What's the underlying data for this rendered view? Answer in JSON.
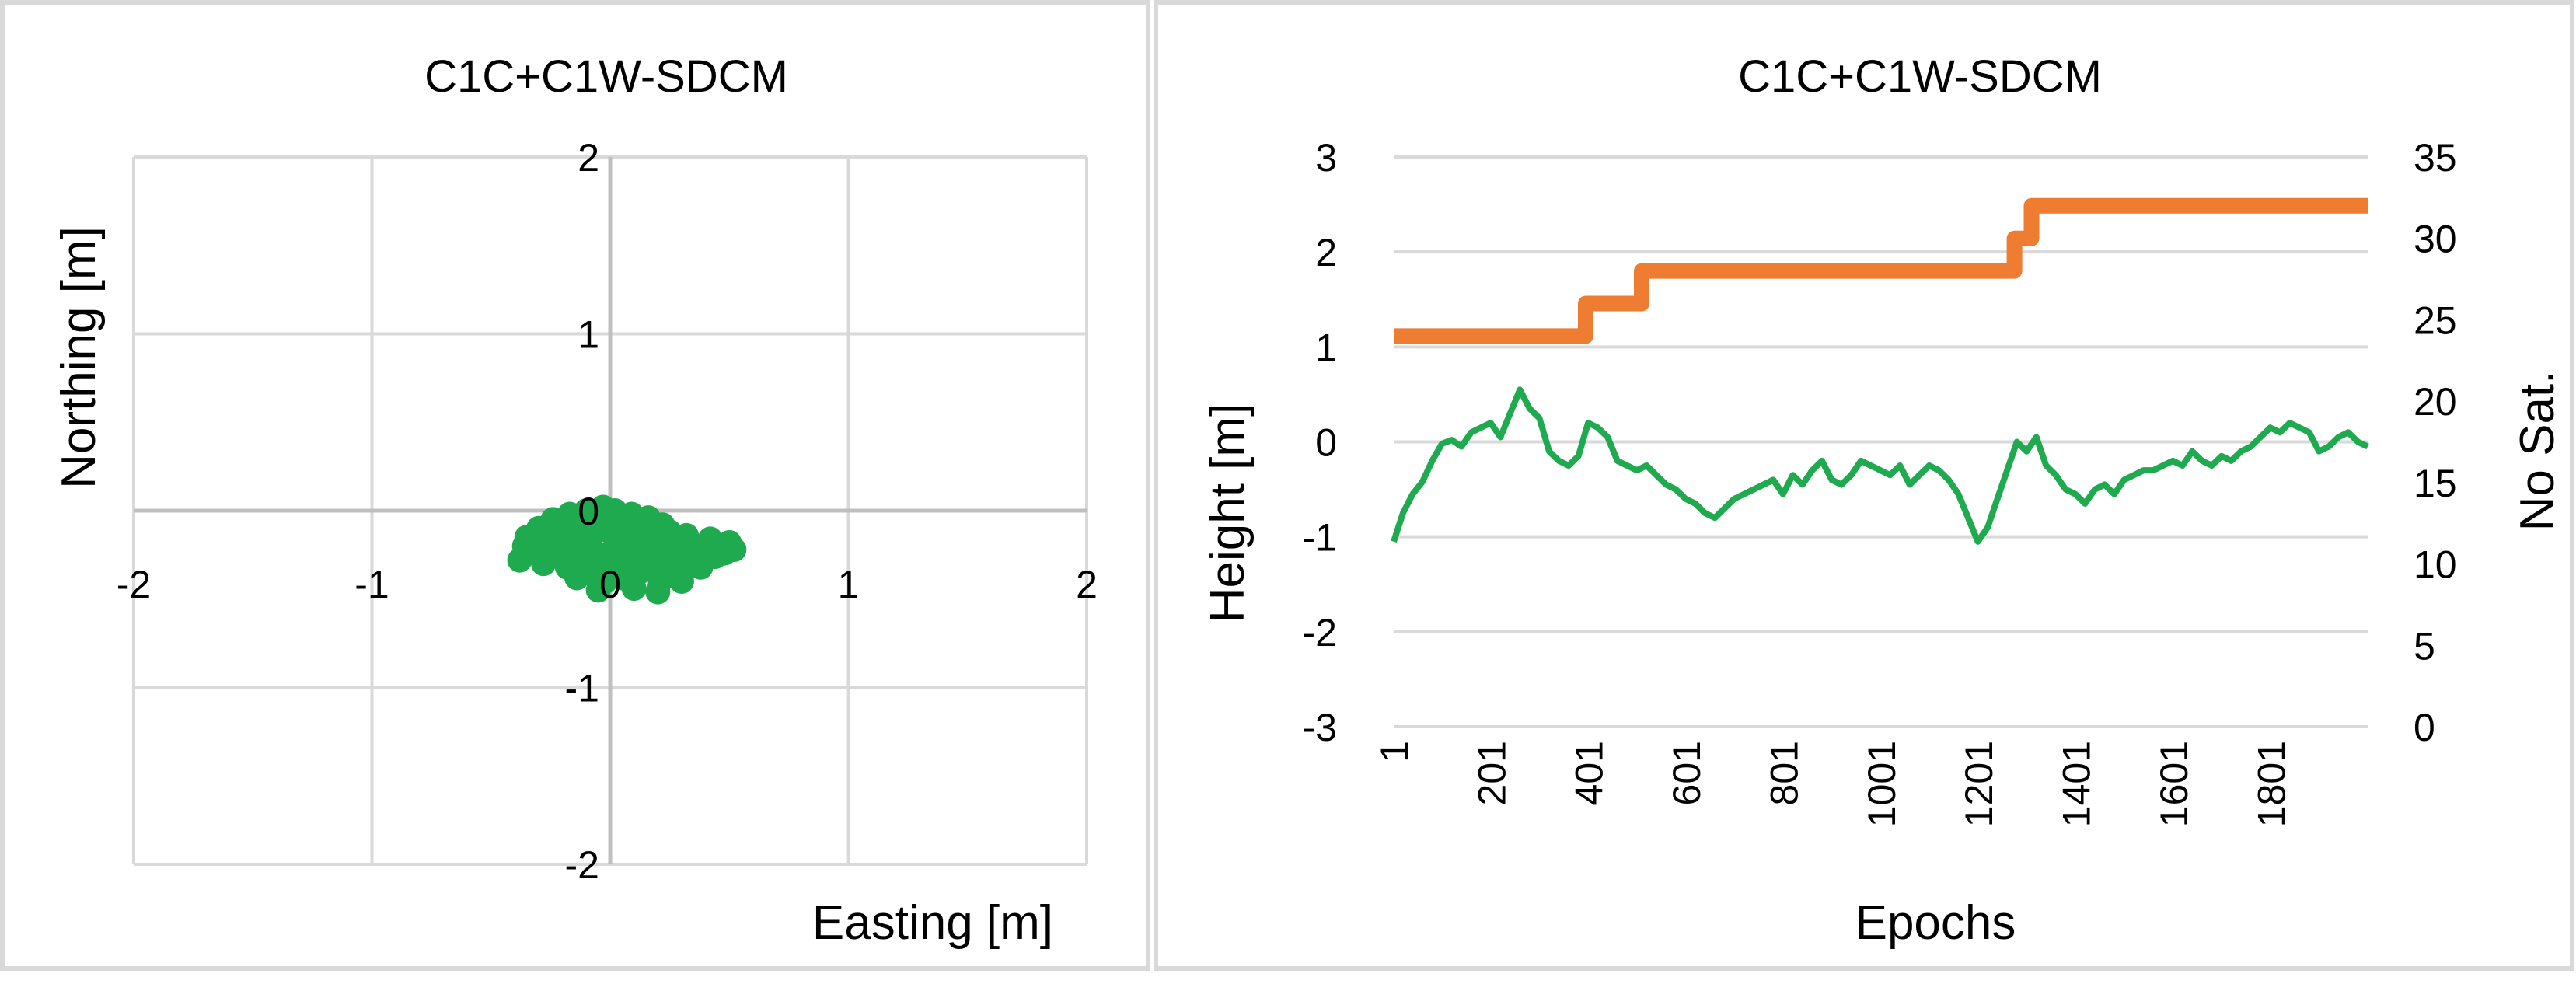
{
  "chart_data": [
    {
      "type": "scatter",
      "title": "C1C+C1W-SDCM",
      "xlabel": "Easting [m]",
      "ylabel": "Northing [m]",
      "xlim": [
        -2,
        2
      ],
      "ylim": [
        -2,
        2
      ],
      "x_ticks": [
        "-2",
        "-1",
        "0",
        "1",
        "2"
      ],
      "y_ticks": [
        "2",
        "1",
        "0",
        "-1",
        "-2"
      ],
      "grid": true,
      "color": "#1faa4f",
      "points": [
        [
          -0.35,
          -0.15
        ],
        [
          -0.32,
          -0.22
        ],
        [
          -0.3,
          -0.1
        ],
        [
          -0.28,
          -0.3
        ],
        [
          -0.26,
          -0.18
        ],
        [
          -0.24,
          -0.05
        ],
        [
          -0.22,
          -0.25
        ],
        [
          -0.2,
          -0.12
        ],
        [
          -0.18,
          -0.32
        ],
        [
          -0.17,
          -0.02
        ],
        [
          -0.15,
          -0.2
        ],
        [
          -0.14,
          -0.38
        ],
        [
          -0.12,
          -0.08
        ],
        [
          -0.11,
          -0.28
        ],
        [
          -0.1,
          0.0
        ],
        [
          -0.08,
          -0.15
        ],
        [
          -0.07,
          -0.35
        ],
        [
          -0.05,
          -0.05
        ],
        [
          -0.04,
          -0.25
        ],
        [
          -0.03,
          0.02
        ],
        [
          -0.02,
          -0.4
        ],
        [
          0.0,
          -0.12
        ],
        [
          0.01,
          -0.3
        ],
        [
          0.02,
          0.0
        ],
        [
          0.03,
          -0.2
        ],
        [
          0.05,
          -0.38
        ],
        [
          0.06,
          -0.08
        ],
        [
          0.08,
          -0.28
        ],
        [
          0.09,
          -0.02
        ],
        [
          0.1,
          -0.18
        ],
        [
          0.12,
          -0.35
        ],
        [
          0.13,
          -0.1
        ],
        [
          0.15,
          -0.25
        ],
        [
          0.16,
          -0.04
        ],
        [
          0.18,
          -0.32
        ],
        [
          0.19,
          -0.15
        ],
        [
          0.21,
          -0.4
        ],
        [
          0.22,
          -0.08
        ],
        [
          0.24,
          -0.22
        ],
        [
          0.25,
          -0.12
        ],
        [
          0.27,
          -0.3
        ],
        [
          0.28,
          -0.18
        ],
        [
          0.3,
          -0.25
        ],
        [
          0.32,
          -0.14
        ],
        [
          0.34,
          -0.28
        ],
        [
          0.36,
          -0.2
        ],
        [
          0.38,
          -0.32
        ],
        [
          0.4,
          -0.22
        ],
        [
          0.42,
          -0.16
        ],
        [
          0.44,
          -0.26
        ],
        [
          0.46,
          -0.2
        ],
        [
          0.48,
          -0.24
        ],
        [
          0.5,
          -0.18
        ],
        [
          0.52,
          -0.22
        ],
        [
          -0.38,
          -0.28
        ],
        [
          -0.36,
          -0.2
        ],
        [
          -0.05,
          -0.45
        ],
        [
          0.1,
          -0.44
        ],
        [
          0.2,
          -0.46
        ],
        [
          0.3,
          -0.4
        ]
      ]
    },
    {
      "type": "line",
      "title": "C1C+C1W-SDCM",
      "xlabel": "Epochs",
      "ylabel": "Height [m]",
      "y2label": "No Sat.",
      "xlim": [
        1,
        2000
      ],
      "ylim": [
        -3,
        3
      ],
      "y2lim": [
        0,
        35
      ],
      "x_ticks": [
        "1",
        "201",
        "401",
        "601",
        "801",
        "1001",
        "1201",
        "1401",
        "1601",
        "1801"
      ],
      "y_ticks": [
        "3",
        "2",
        "1",
        "0",
        "-1",
        "-2",
        "-3"
      ],
      "y2_ticks": [
        "35",
        "30",
        "25",
        "20",
        "15",
        "10",
        "5",
        "0"
      ],
      "grid": true,
      "series": [
        {
          "axis": "left",
          "color": "#1faa4f",
          "x": [
            1,
            20,
            40,
            60,
            80,
            100,
            120,
            140,
            160,
            180,
            200,
            220,
            240,
            260,
            280,
            300,
            320,
            340,
            360,
            380,
            400,
            420,
            440,
            460,
            480,
            500,
            520,
            540,
            560,
            580,
            600,
            620,
            640,
            660,
            680,
            700,
            720,
            740,
            760,
            780,
            800,
            820,
            840,
            860,
            880,
            900,
            920,
            940,
            960,
            980,
            1000,
            1020,
            1040,
            1060,
            1080,
            1100,
            1120,
            1140,
            1160,
            1180,
            1200,
            1220,
            1240,
            1260,
            1280,
            1300,
            1320,
            1340,
            1360,
            1380,
            1400,
            1420,
            1440,
            1460,
            1480,
            1500,
            1520,
            1540,
            1560,
            1580,
            1600,
            1620,
            1640,
            1660,
            1680,
            1700,
            1720,
            1740,
            1760,
            1780,
            1800,
            1820,
            1840,
            1860,
            1880,
            1900,
            1920,
            1940,
            1960,
            1980,
            2000
          ],
          "values": [
            -1.05,
            -0.75,
            -0.55,
            -0.42,
            -0.2,
            -0.02,
            0.02,
            -0.05,
            0.1,
            0.15,
            0.2,
            0.05,
            0.3,
            0.55,
            0.35,
            0.25,
            -0.1,
            -0.2,
            -0.25,
            -0.15,
            0.2,
            0.15,
            0.05,
            -0.2,
            -0.25,
            -0.3,
            -0.25,
            -0.35,
            -0.45,
            -0.5,
            -0.6,
            -0.65,
            -0.75,
            -0.8,
            -0.7,
            -0.6,
            -0.55,
            -0.5,
            -0.45,
            -0.4,
            -0.55,
            -0.35,
            -0.45,
            -0.3,
            -0.2,
            -0.4,
            -0.45,
            -0.35,
            -0.2,
            -0.25,
            -0.3,
            -0.35,
            -0.25,
            -0.45,
            -0.35,
            -0.25,
            -0.3,
            -0.4,
            -0.55,
            -0.8,
            -1.05,
            -0.9,
            -0.6,
            -0.3,
            0.0,
            -0.1,
            0.05,
            -0.25,
            -0.35,
            -0.5,
            -0.55,
            -0.65,
            -0.5,
            -0.45,
            -0.55,
            -0.4,
            -0.35,
            -0.3,
            -0.3,
            -0.25,
            -0.2,
            -0.25,
            -0.1,
            -0.2,
            -0.25,
            -0.15,
            -0.2,
            -0.1,
            -0.05,
            0.05,
            0.15,
            0.1,
            0.2,
            0.15,
            0.1,
            -0.1,
            -0.05,
            0.05,
            0.1,
            0.0,
            -0.05
          ]
        },
        {
          "axis": "right",
          "color": "#ee7d31",
          "step": true,
          "x": [
            1,
            395,
            395,
            510,
            510,
            1275,
            1275,
            1310,
            1310,
            2000
          ],
          "values": [
            24,
            24,
            26,
            26,
            28,
            28,
            30,
            30,
            32,
            32
          ]
        }
      ]
    }
  ]
}
